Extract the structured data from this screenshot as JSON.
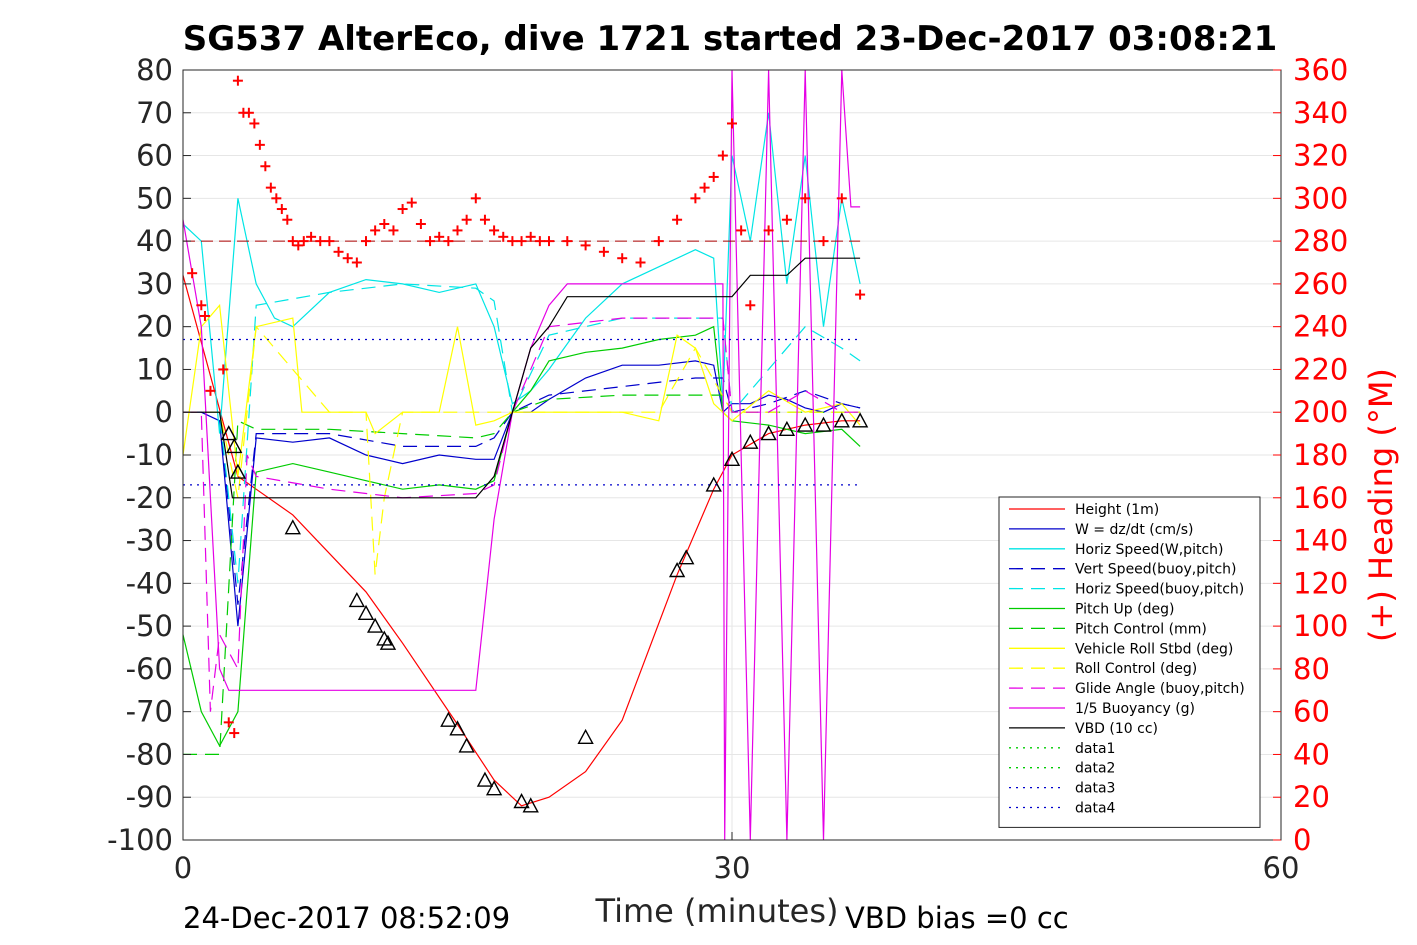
{
  "chart_data": {
    "type": "line",
    "title": "SG537 AlterEco, dive 1721 started 23-Dec-2017 03:08:21",
    "xlabel": "Time (minutes)",
    "ylabel": "",
    "y2label": "(+) Heading (°M)",
    "xlim": [
      0,
      60
    ],
    "ylim": [
      -100,
      80
    ],
    "y2lim": [
      0,
      360
    ],
    "x_ticks": [
      "0",
      "30",
      "60"
    ],
    "y_ticks": [
      "80",
      "70",
      "60",
      "50",
      "40",
      "30",
      "20",
      "10",
      "0",
      "-10",
      "-20",
      "-30",
      "-40",
      "-50",
      "-60",
      "-70",
      "-80",
      "-90",
      "-100"
    ],
    "y2_ticks": [
      "360",
      "340",
      "320",
      "300",
      "280",
      "260",
      "240",
      "220",
      "200",
      "180",
      "160",
      "140",
      "120",
      "100",
      "80",
      "60",
      "40",
      "20",
      "0"
    ],
    "grid": true,
    "legend_position": "bottom-right",
    "footer_left": "24-Dec-2017 08:52:09",
    "footer_right": "VBD bias =0 cc",
    "colors": {
      "height": "#ff0000",
      "w": "#0000cc",
      "horiz_speed": "#00e5e5",
      "pitch": "#00cc00",
      "roll": "#ffff00",
      "glide": "#e500e5",
      "buoyancy": "#e500e5",
      "vbd": "#000000",
      "heading": "#ff0000"
    },
    "series": [
      {
        "name": "Height (1m)",
        "color": "#ff0000",
        "dash": "",
        "x": [
          0,
          3,
          6,
          10,
          12,
          15,
          17,
          18.5,
          20,
          22,
          24,
          27,
          29,
          30,
          32,
          34,
          36,
          37
        ],
        "y": [
          32,
          -15,
          -24,
          -42,
          -54,
          -73,
          -86,
          -92,
          -90,
          -84,
          -72,
          -38,
          -18,
          -10,
          -5,
          -3,
          -2,
          -2
        ]
      },
      {
        "name": "W = dz/dt (cm/s)",
        "color": "#0000cc",
        "dash": "",
        "x": [
          0,
          1,
          2,
          3,
          4,
          6,
          8,
          10,
          12,
          14,
          16,
          17,
          18,
          19,
          20,
          22,
          24,
          26,
          28,
          29,
          29.5,
          30,
          31,
          32,
          33,
          34,
          35,
          36,
          37
        ],
        "y": [
          0,
          0,
          -2,
          -50,
          -6,
          -7,
          -6,
          -10,
          -12,
          -10,
          -11,
          -11,
          0,
          0,
          3,
          8,
          11,
          11,
          12,
          11,
          0,
          2,
          2,
          4,
          3,
          1,
          0,
          2,
          1
        ]
      },
      {
        "name": "Horiz Speed(W,pitch)",
        "color": "#00e5e5",
        "dash": "",
        "x": [
          0,
          1,
          2,
          3,
          4,
          5,
          6,
          8,
          10,
          12,
          14,
          16,
          17,
          18,
          19,
          20,
          22,
          24,
          26,
          28,
          29,
          29.5,
          30,
          31,
          32,
          33,
          34,
          35,
          36,
          37
        ],
        "y": [
          44,
          40,
          -5,
          50,
          30,
          22,
          20,
          28,
          31,
          30,
          28,
          30,
          20,
          2,
          5,
          10,
          22,
          30,
          34,
          38,
          36,
          2,
          60,
          40,
          70,
          30,
          60,
          20,
          50,
          30
        ]
      },
      {
        "name": "Vert Speed(buoy,pitch)",
        "color": "#0000cc",
        "dash": "14,8",
        "x": [
          0,
          2,
          3,
          4,
          8,
          12,
          16,
          17,
          18,
          20,
          24,
          28,
          29.5,
          30,
          32,
          34,
          36,
          37
        ],
        "y": [
          0,
          0,
          -45,
          -5,
          -5,
          -8,
          -8,
          -6,
          0,
          4,
          6,
          8,
          8,
          0,
          2,
          5,
          2,
          1
        ]
      },
      {
        "name": "Horiz Speed(buoy,pitch)",
        "color": "#00e5e5",
        "dash": "14,8",
        "x": [
          0,
          2,
          3,
          4,
          8,
          12,
          16,
          17,
          18,
          20,
          24,
          28,
          29.5,
          30,
          32,
          34,
          36,
          37
        ],
        "y": [
          0,
          0,
          -40,
          25,
          28,
          30,
          29,
          26,
          0,
          18,
          22,
          22,
          22,
          0,
          10,
          20,
          15,
          12
        ]
      },
      {
        "name": "Pitch Up (deg)",
        "color": "#00cc00",
        "dash": "",
        "x": [
          0,
          1,
          2,
          3,
          4,
          6,
          8,
          10,
          12,
          14,
          16,
          17,
          18,
          19,
          20,
          22,
          24,
          26,
          28,
          29,
          29.5,
          30,
          32,
          34,
          36,
          37
        ],
        "y": [
          -52,
          -70,
          -78,
          -70,
          -14,
          -12,
          -14,
          -16,
          -18,
          -17,
          -18,
          -16,
          0,
          5,
          12,
          14,
          15,
          17,
          18,
          20,
          0,
          -2,
          -3,
          -5,
          -4,
          -8
        ]
      },
      {
        "name": "Pitch Control (mm)",
        "color": "#00cc00",
        "dash": "14,8",
        "x": [
          0,
          1,
          2,
          3,
          4,
          8,
          12,
          16,
          17,
          18,
          20,
          24,
          28,
          29.5,
          30,
          32,
          34,
          36,
          37
        ],
        "y": [
          -80,
          -80,
          -80,
          -2,
          -4,
          -4,
          -5,
          -6,
          -5,
          0,
          3,
          4,
          4,
          4,
          0,
          0,
          0,
          0,
          0
        ]
      },
      {
        "name": "Vehicle Roll Stbd (deg)",
        "color": "#ffff00",
        "dash": "",
        "x": [
          0,
          1,
          2,
          3,
          4,
          6,
          6.5,
          8,
          10,
          10.5,
          12,
          14,
          15,
          16,
          17,
          18,
          20,
          22,
          24,
          26,
          27,
          28,
          29,
          30,
          32,
          34,
          36,
          37
        ],
        "y": [
          -10,
          20,
          25,
          -15,
          20,
          22,
          0,
          0,
          0,
          -5,
          0,
          0,
          20,
          -3,
          -2,
          0,
          0,
          0,
          0,
          -2,
          18,
          15,
          2,
          -2,
          5,
          0,
          2,
          -3
        ]
      },
      {
        "name": "Roll Control (deg)",
        "color": "#ffff00",
        "dash": "14,8",
        "x": [
          0,
          2,
          3,
          4,
          8,
          10,
          10.5,
          11,
          12,
          16,
          18,
          22,
          26,
          28,
          30,
          32,
          34,
          36,
          37
        ],
        "y": [
          0,
          0,
          -20,
          20,
          0,
          0,
          -38,
          -20,
          0,
          0,
          0,
          0,
          0,
          15,
          0,
          0,
          0,
          0,
          0
        ]
      },
      {
        "name": "Glide Angle (buoy,pitch)",
        "color": "#e500e5",
        "dash": "14,8",
        "x": [
          0,
          1,
          1.5,
          2,
          3,
          3.5,
          4,
          8,
          12,
          16,
          17,
          18,
          20,
          24,
          28,
          29.5,
          30,
          32,
          34,
          36,
          37
        ],
        "y": [
          0,
          0,
          -70,
          -52,
          -60,
          -10,
          -15,
          -18,
          -20,
          -19,
          -17,
          0,
          20,
          22,
          22,
          22,
          0,
          0,
          5,
          0,
          0
        ]
      },
      {
        "name": "1/5 Buoyancy (g)",
        "color": "#e500e5",
        "dash": "",
        "x": [
          0,
          1,
          2,
          2.5,
          3,
          5,
          10,
          16,
          17,
          18,
          19,
          20,
          21,
          25,
          29.5,
          29.6,
          30,
          31,
          32,
          33,
          34,
          35,
          36,
          36.5,
          37
        ],
        "y": [
          45,
          20,
          -60,
          -65,
          -65,
          -65,
          -65,
          -65,
          -25,
          0,
          15,
          25,
          30,
          30,
          30,
          -100,
          80,
          -100,
          80,
          -100,
          80,
          -100,
          80,
          48,
          48
        ]
      },
      {
        "name": "VBD (10 cc)",
        "color": "#000000",
        "dash": "",
        "x": [
          0,
          2,
          2.7,
          3,
          5,
          10,
          16,
          17,
          18,
          19,
          20,
          21,
          25,
          30,
          31,
          33,
          34,
          37
        ],
        "y": [
          0,
          0,
          -20,
          -20,
          -20,
          -20,
          -20,
          -15,
          0,
          15,
          20,
          27,
          27,
          27,
          32,
          32,
          36,
          36
        ]
      },
      {
        "name": "data1",
        "color": "#00cc00",
        "dash": "2,5",
        "x": [],
        "y": []
      },
      {
        "name": "data2",
        "color": "#00cc00",
        "dash": "2,5",
        "x": [],
        "y": []
      },
      {
        "name": "data3",
        "color": "#0000cc",
        "dash": "2,5",
        "x": [
          0,
          37
        ],
        "y": [
          17,
          17
        ]
      },
      {
        "name": "data4",
        "color": "#0000cc",
        "dash": "2,5",
        "x": [
          0,
          37
        ],
        "y": [
          -17,
          -17
        ]
      }
    ],
    "heading_series": {
      "axis": "right",
      "color": "#ff0000",
      "marker": "plus",
      "reference": 280,
      "x": [
        0.5,
        1,
        1.2,
        1.5,
        2.2,
        2.5,
        2.8,
        3,
        3.3,
        3.6,
        3.9,
        4.2,
        4.5,
        4.8,
        5.1,
        5.4,
        5.7,
        6,
        6.3,
        6.6,
        7,
        7.5,
        8,
        8.5,
        9,
        9.5,
        10,
        10.5,
        11,
        11.5,
        12,
        12.5,
        13,
        13.5,
        14,
        14.5,
        15,
        15.5,
        16,
        16.5,
        17,
        17.5,
        18,
        18.5,
        19,
        19.5,
        20,
        21,
        22,
        23,
        24,
        25,
        26,
        27,
        28,
        28.5,
        29,
        29.5,
        30,
        30.5,
        31,
        32,
        33,
        34,
        35,
        36,
        37
      ],
      "y": [
        265,
        250,
        245,
        210,
        220,
        55,
        50,
        355,
        340,
        340,
        335,
        325,
        315,
        305,
        300,
        295,
        290,
        280,
        278,
        280,
        282,
        280,
        280,
        275,
        272,
        270,
        280,
        285,
        288,
        285,
        295,
        298,
        288,
        280,
        282,
        280,
        285,
        290,
        300,
        290,
        285,
        282,
        280,
        280,
        282,
        280,
        280,
        280,
        278,
        275,
        272,
        270,
        280,
        290,
        300,
        305,
        310,
        320,
        335,
        285,
        250,
        285,
        290,
        300,
        280,
        300,
        255
      ]
    },
    "markers": {
      "type": "triangle",
      "color": "#000000",
      "x": [
        2.5,
        2.8,
        3,
        6,
        9.5,
        10,
        10.5,
        11,
        11.2,
        14.5,
        15,
        15.5,
        16.5,
        17,
        18.5,
        19,
        22,
        27,
        27.5,
        29,
        30,
        31,
        32,
        33,
        34,
        35,
        36,
        37
      ],
      "y": [
        -5,
        -8,
        -14,
        -27,
        -44,
        -47,
        -50,
        -53,
        -54,
        -72,
        -74,
        -78,
        -86,
        -88,
        -91,
        -92,
        -76,
        -37,
        -34,
        -17,
        -11,
        -7,
        -5,
        -4,
        -3,
        -3,
        -2,
        -2
      ]
    }
  }
}
